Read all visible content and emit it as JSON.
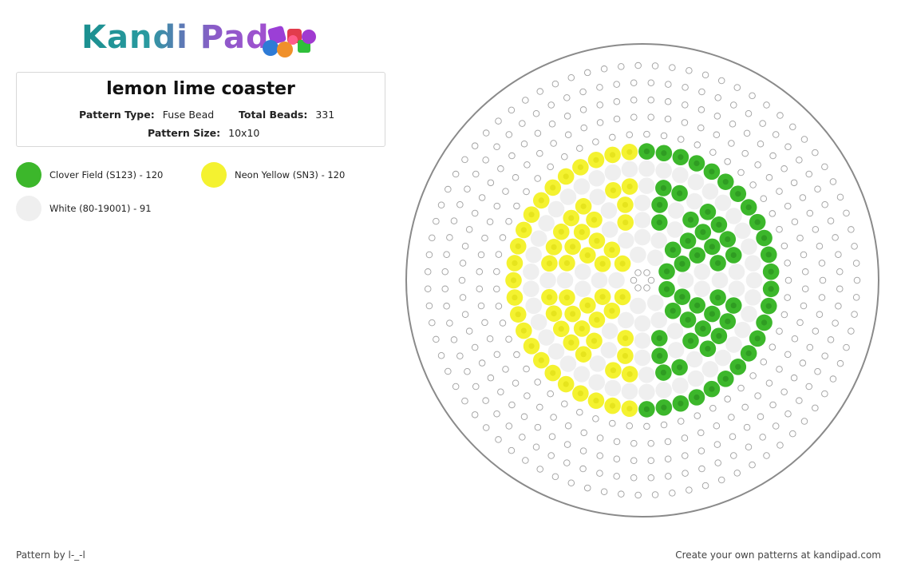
{
  "logo": {
    "text": "Kandi Pad"
  },
  "pattern": {
    "title": "lemon lime coaster",
    "type_label": "Pattern Type:",
    "type_value": "Fuse Bead",
    "total_label": "Total Beads:",
    "total_value": "331",
    "size_label": "Pattern Size:",
    "size_value": "10x10"
  },
  "legend": [
    {
      "label": "Clover Field (S123) - 120",
      "color": "#3cb72b"
    },
    {
      "label": "Neon Yellow (SN3) - 120",
      "color": "#f4f230"
    },
    {
      "label": "White (80-19001) - 91",
      "color": "#efefef"
    }
  ],
  "bead_colors": {
    "green": "#3cb72b",
    "green_hole": "#2f9c22",
    "yellow": "#f4f230",
    "yellow_hole": "#e6e41d",
    "white": "#efefef",
    "empty_stroke": "#a0a0a0",
    "board_stroke": "#8a8a8a"
  },
  "footer": {
    "credit": "Pattern by l-_-l",
    "cta": "Create your own patterns at kandipad.com"
  }
}
